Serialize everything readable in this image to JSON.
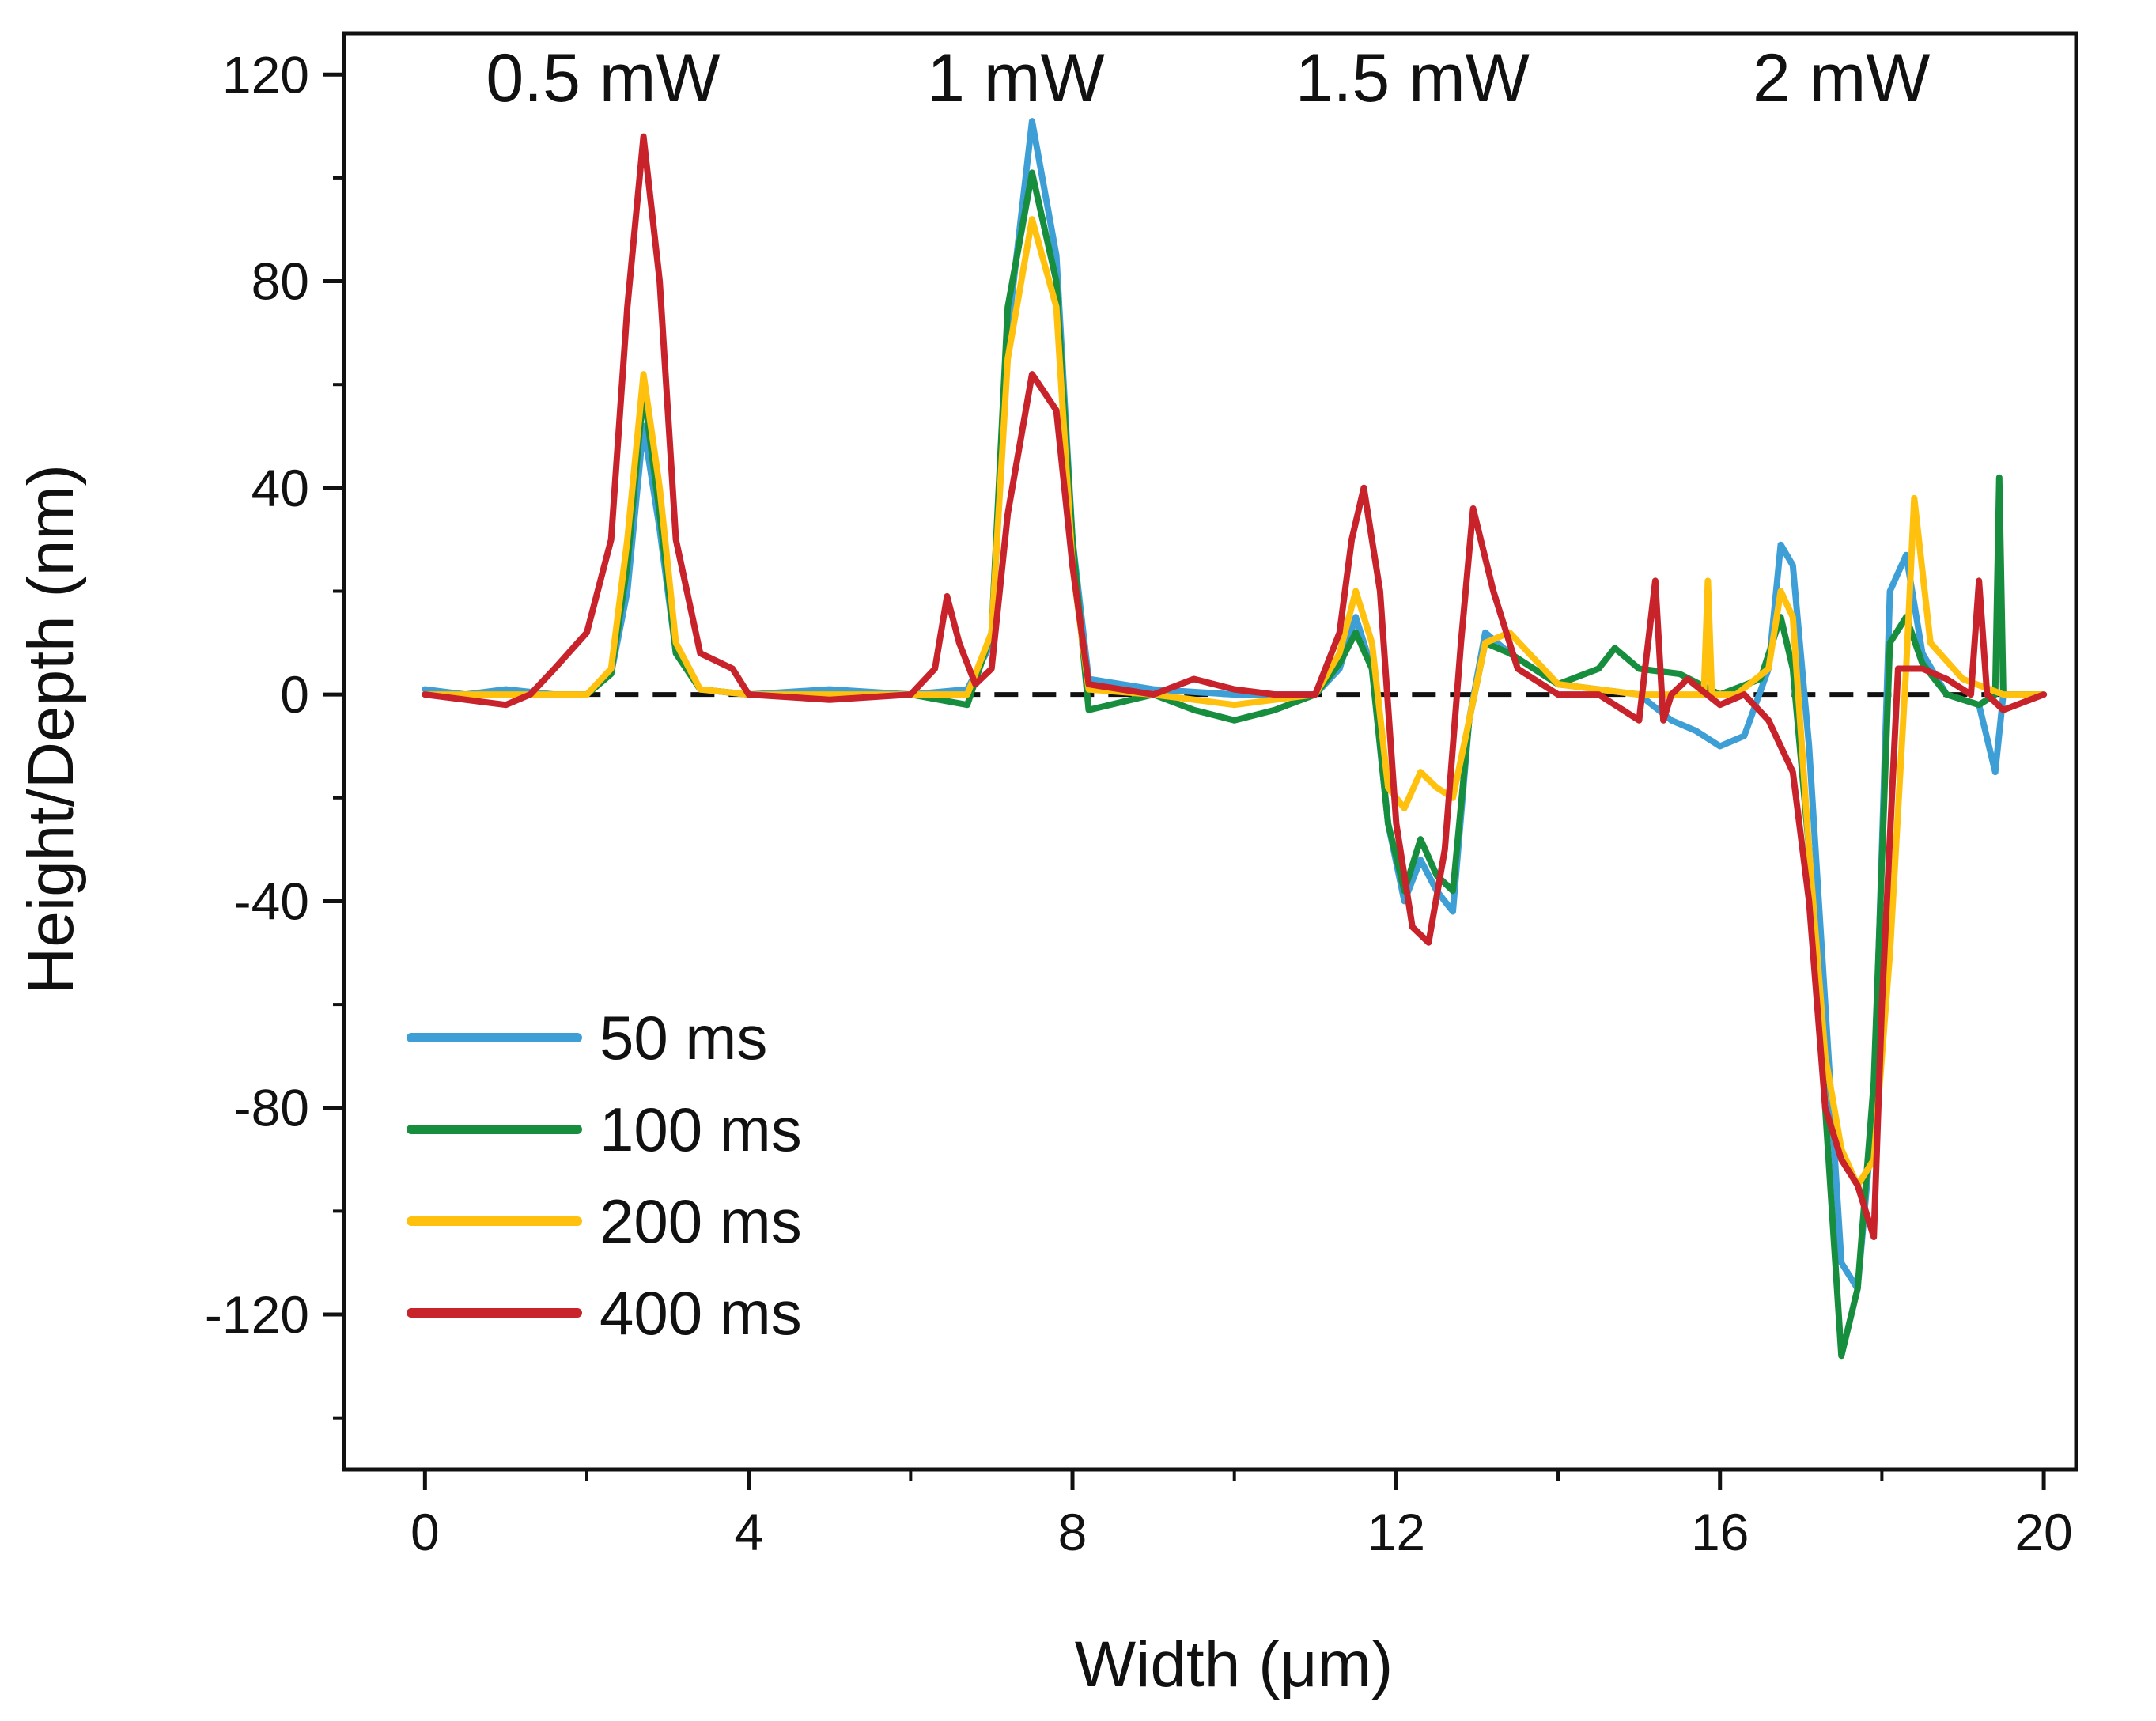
{
  "chart_data": {
    "type": "line",
    "xlabel": "Width (μm)",
    "ylabel": "Height/Depth (nm)",
    "xlim": [
      -1,
      20.4
    ],
    "ylim": [
      -150,
      128
    ],
    "xticks": [
      0,
      4,
      8,
      12,
      16,
      20
    ],
    "xtick_labels": [
      "0",
      "4",
      "8",
      "12",
      "16",
      "20"
    ],
    "yticks": [
      120,
      80,
      40,
      0,
      -40,
      -80,
      -120
    ],
    "ytick_labels": [
      "120",
      "80",
      "40",
      "0",
      "-40",
      "-80",
      "-120"
    ],
    "baseline": {
      "y": 0,
      "style": "dashed",
      "color": "#111111"
    },
    "annotations": [
      {
        "text": "0.5 mW",
        "x": 2.2
      },
      {
        "text": "1 mW",
        "x": 7.3
      },
      {
        "text": "1.5 mW",
        "x": 12.2
      },
      {
        "text": "2 mW",
        "x": 17.5
      }
    ],
    "legend_position": "bottom-left",
    "series": [
      {
        "name": "50 ms",
        "color": "#3d9fd6",
        "x": [
          0,
          0.5,
          1.0,
          1.6,
          2.0,
          2.3,
          2.5,
          2.7,
          2.9,
          3.1,
          3.4,
          4.0,
          5.0,
          6.0,
          6.7,
          7.0,
          7.2,
          7.5,
          7.8,
          8.0,
          8.2,
          9.0,
          10.0,
          11.0,
          11.3,
          11.5,
          11.7,
          11.9,
          12.1,
          12.3,
          12.5,
          12.7,
          12.9,
          13.1,
          13.4,
          14.0,
          15.0,
          15.4,
          15.7,
          16.0,
          16.3,
          16.6,
          16.75,
          16.9,
          17.1,
          17.3,
          17.5,
          17.7,
          17.9,
          18.1,
          18.3,
          18.5,
          18.8,
          19.2,
          19.4,
          19.5,
          20.0
        ],
        "values": [
          1,
          0,
          1,
          0,
          0,
          4,
          20,
          52,
          32,
          8,
          1,
          0,
          1,
          0,
          1,
          10,
          70,
          111,
          85,
          30,
          3,
          1,
          0,
          0,
          5,
          15,
          5,
          -25,
          -40,
          -32,
          -38,
          -42,
          -5,
          12,
          8,
          2,
          0,
          -5,
          -7,
          -10,
          -8,
          5,
          29,
          25,
          -10,
          -60,
          -110,
          -115,
          -80,
          20,
          27,
          8,
          0,
          -2,
          -15,
          0,
          0
        ]
      },
      {
        "name": "100 ms",
        "color": "#178d3e",
        "x": [
          0,
          0.5,
          1.0,
          1.6,
          2.0,
          2.3,
          2.5,
          2.7,
          2.9,
          3.1,
          3.4,
          4.0,
          5.0,
          6.0,
          6.7,
          7.0,
          7.2,
          7.5,
          7.8,
          8.0,
          8.2,
          9.0,
          9.5,
          10.0,
          10.5,
          11.0,
          11.3,
          11.5,
          11.7,
          11.9,
          12.1,
          12.3,
          12.5,
          12.7,
          12.9,
          13.1,
          13.4,
          14.0,
          14.5,
          14.7,
          15.0,
          15.5,
          16.0,
          16.5,
          16.75,
          16.9,
          17.1,
          17.3,
          17.5,
          17.7,
          17.9,
          18.1,
          18.3,
          18.5,
          18.8,
          19.2,
          19.4,
          19.45,
          19.5,
          20.0
        ],
        "values": [
          0,
          0,
          0,
          0,
          0,
          4,
          25,
          59,
          35,
          8,
          1,
          0,
          0,
          0,
          -2,
          12,
          75,
          101,
          80,
          30,
          -3,
          0,
          -3,
          -5,
          -3,
          0,
          6,
          12,
          5,
          -25,
          -38,
          -28,
          -35,
          -38,
          -5,
          10,
          8,
          2,
          5,
          9,
          5,
          4,
          0,
          3,
          15,
          5,
          -30,
          -80,
          -128,
          -115,
          -75,
          10,
          15,
          6,
          0,
          -2,
          0,
          42,
          0,
          0
        ]
      },
      {
        "name": "200 ms",
        "color": "#ffc10d",
        "x": [
          0,
          0.5,
          1.0,
          1.6,
          2.0,
          2.3,
          2.5,
          2.7,
          2.9,
          3.1,
          3.4,
          4.0,
          5.0,
          6.0,
          6.7,
          7.0,
          7.2,
          7.5,
          7.8,
          8.0,
          8.2,
          9.0,
          10.0,
          11.0,
          11.3,
          11.5,
          11.7,
          11.9,
          12.1,
          12.3,
          12.5,
          12.7,
          12.9,
          13.1,
          13.4,
          14.0,
          15.0,
          15.5,
          15.8,
          15.85,
          15.9,
          16.2,
          16.6,
          16.75,
          16.9,
          17.1,
          17.3,
          17.5,
          17.7,
          17.9,
          18.1,
          18.3,
          18.4,
          18.6,
          19.0,
          19.5,
          20.0
        ],
        "values": [
          0,
          0,
          0,
          0,
          0,
          5,
          30,
          62,
          40,
          10,
          1,
          0,
          0,
          0,
          0,
          12,
          65,
          92,
          75,
          25,
          1,
          0,
          -2,
          0,
          8,
          20,
          10,
          -18,
          -22,
          -15,
          -18,
          -20,
          -5,
          10,
          12,
          2,
          0,
          0,
          0,
          22,
          0,
          0,
          5,
          20,
          15,
          -30,
          -70,
          -88,
          -95,
          -90,
          -50,
          5,
          38,
          10,
          3,
          0,
          0
        ]
      },
      {
        "name": "400 ms",
        "color": "#c8222b",
        "x": [
          0,
          0.5,
          1.0,
          1.3,
          1.6,
          2.0,
          2.3,
          2.5,
          2.7,
          2.9,
          3.1,
          3.4,
          3.8,
          4.0,
          5.0,
          6.0,
          6.3,
          6.45,
          6.6,
          6.8,
          7.0,
          7.2,
          7.5,
          7.8,
          8.0,
          8.2,
          9.0,
          9.5,
          10.0,
          10.5,
          11.0,
          11.3,
          11.45,
          11.6,
          11.8,
          12.0,
          12.2,
          12.4,
          12.6,
          12.8,
          12.95,
          13.2,
          13.5,
          14.0,
          14.5,
          15.0,
          15.2,
          15.3,
          15.4,
          15.6,
          16.0,
          16.3,
          16.6,
          16.9,
          17.1,
          17.3,
          17.5,
          17.7,
          17.9,
          18.0,
          18.2,
          18.5,
          18.8,
          19.1,
          19.2,
          19.3,
          19.5,
          20.0
        ],
        "values": [
          0,
          -1,
          -2,
          0,
          5,
          12,
          30,
          75,
          108,
          80,
          30,
          8,
          5,
          0,
          -1,
          0,
          5,
          19,
          10,
          2,
          5,
          35,
          62,
          55,
          25,
          2,
          0,
          3,
          1,
          0,
          0,
          12,
          30,
          40,
          20,
          -25,
          -45,
          -48,
          -30,
          10,
          36,
          20,
          5,
          0,
          0,
          -5,
          22,
          -5,
          0,
          3,
          -2,
          0,
          -5,
          -15,
          -40,
          -80,
          -90,
          -95,
          -105,
          -60,
          5,
          5,
          3,
          0,
          22,
          0,
          -3,
          0
        ]
      }
    ]
  }
}
